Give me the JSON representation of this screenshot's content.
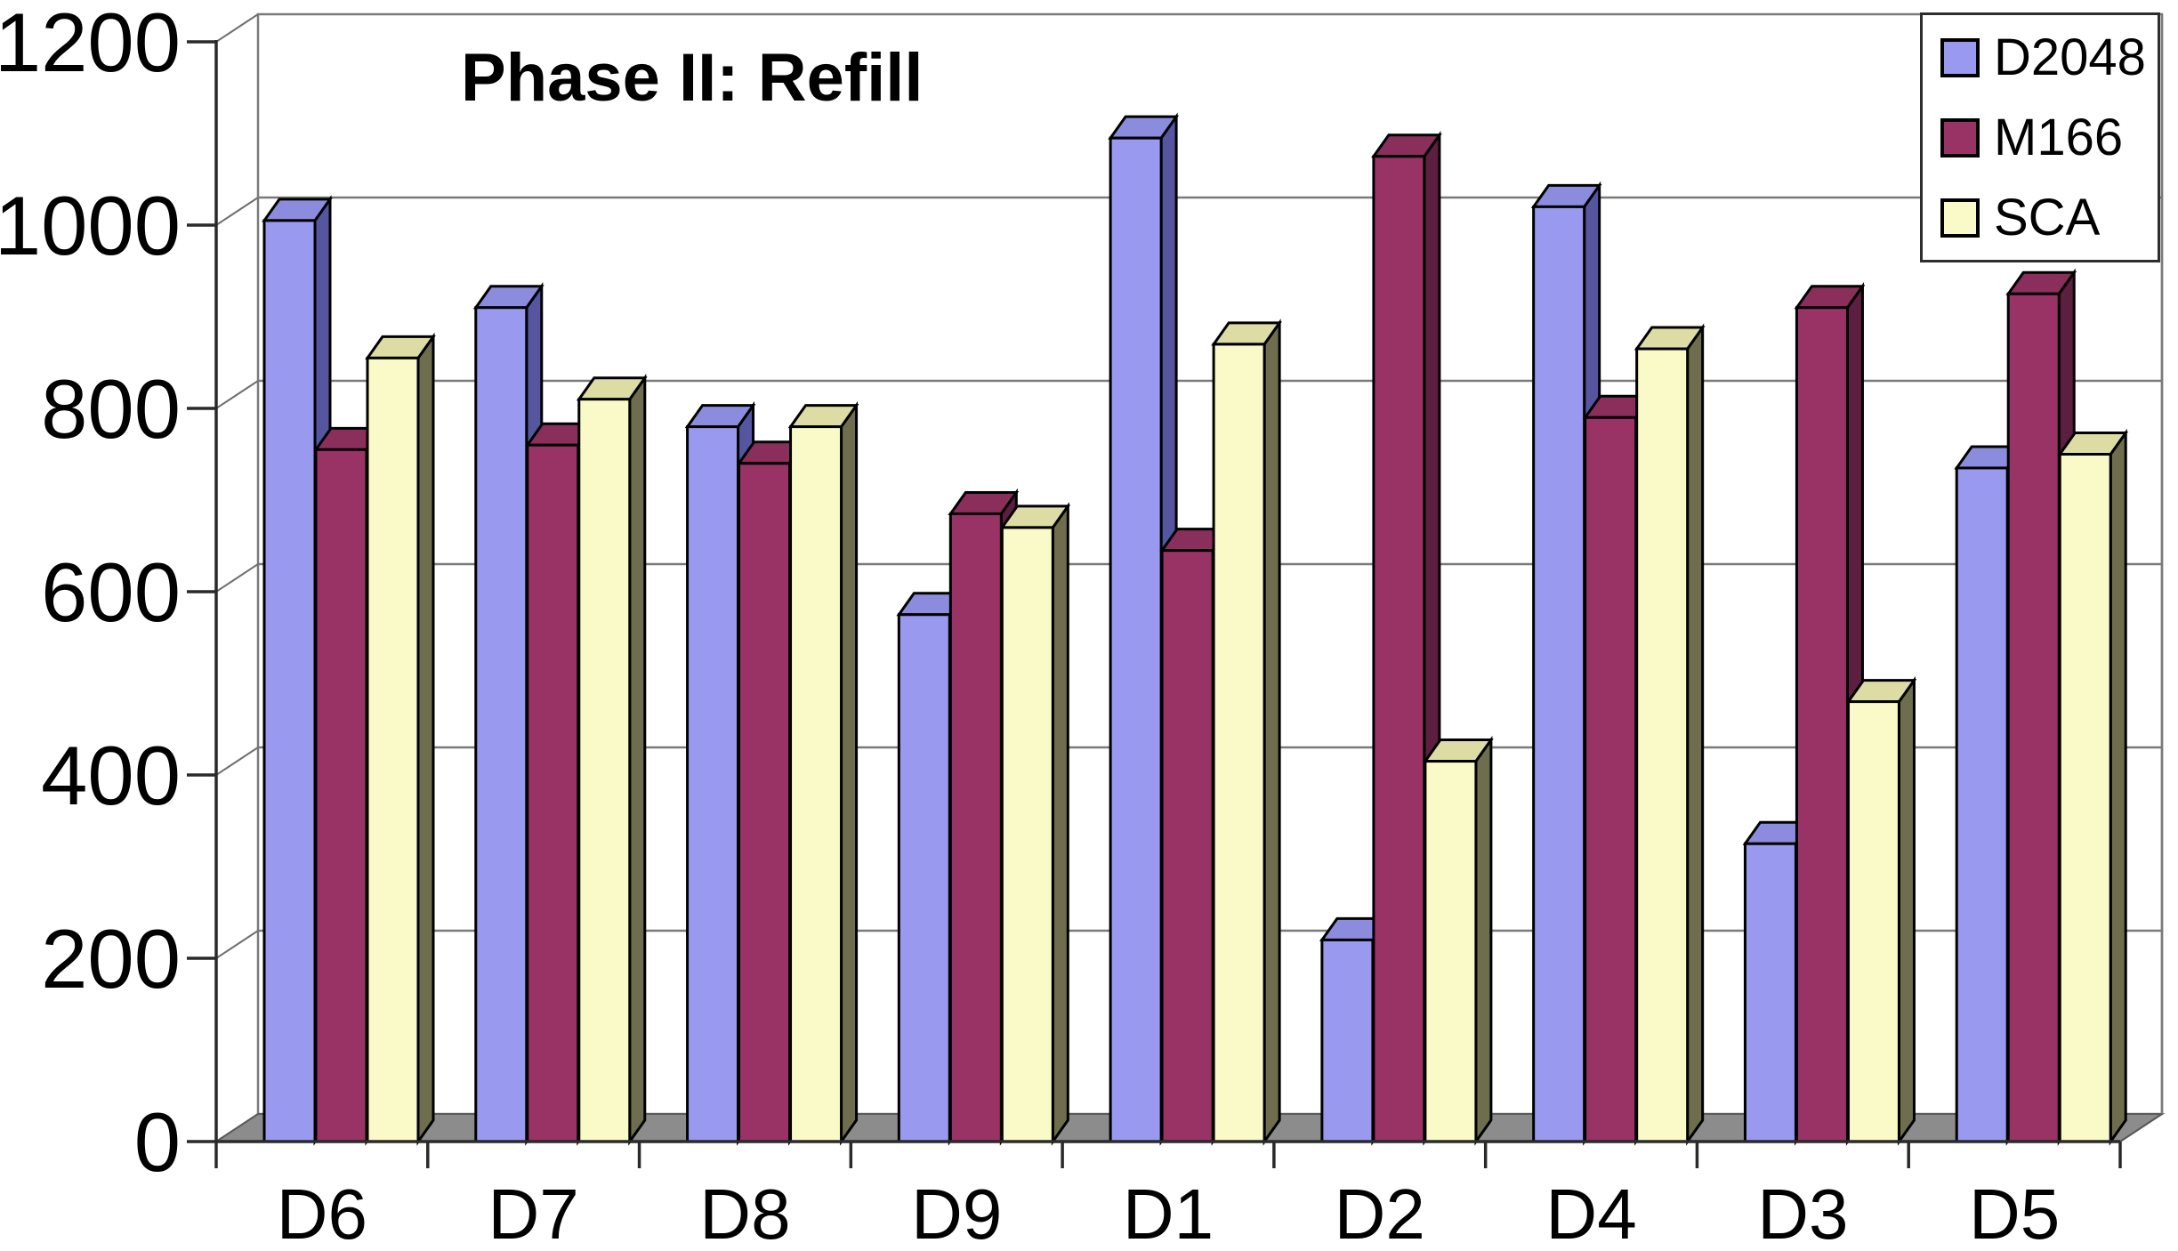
{
  "chart_data": {
    "type": "bar",
    "title": "Phase II: Refill",
    "subtitle": "",
    "categories": [
      "D6",
      "D7",
      "D8",
      "D9",
      "D1",
      "D2",
      "D4",
      "D3",
      "D5"
    ],
    "series": [
      {
        "name": "D2048",
        "color": "#9999F0",
        "top_color": "#8C8CDE",
        "side_color": "#5555A0",
        "values": [
          1005,
          910,
          780,
          575,
          1095,
          220,
          1020,
          325,
          735
        ]
      },
      {
        "name": "M166",
        "color": "#993366",
        "top_color": "#8A2E5B",
        "side_color": "#5C1F3F",
        "values": [
          755,
          760,
          740,
          685,
          645,
          1075,
          790,
          910,
          925
        ]
      },
      {
        "name": "SCA",
        "color": "#FAFAC8",
        "top_color": "#DCDCA4",
        "side_color": "#6E6E4E",
        "values": [
          855,
          810,
          780,
          670,
          870,
          415,
          865,
          480,
          750
        ]
      }
    ],
    "xlabel": "",
    "ylabel": "",
    "ylim": [
      0,
      1200
    ],
    "yticks": [
      0,
      200,
      400,
      600,
      800,
      1000,
      1200
    ],
    "grid": true,
    "effect": "3d-clustered-columns",
    "legend_position": "top-right"
  },
  "colors": {
    "background": "#FFFFFF",
    "plot_wall": "#FFFFFF",
    "gridline": "#7A7A7A",
    "wall_border": "#7A7A7A",
    "axis": "#2A2A2A",
    "bar_outline": "#000000",
    "floor": "#8C8C8C",
    "floor_edge": "#5A5A5A",
    "text": "#000000",
    "legend_border": "#2E2E2E"
  }
}
